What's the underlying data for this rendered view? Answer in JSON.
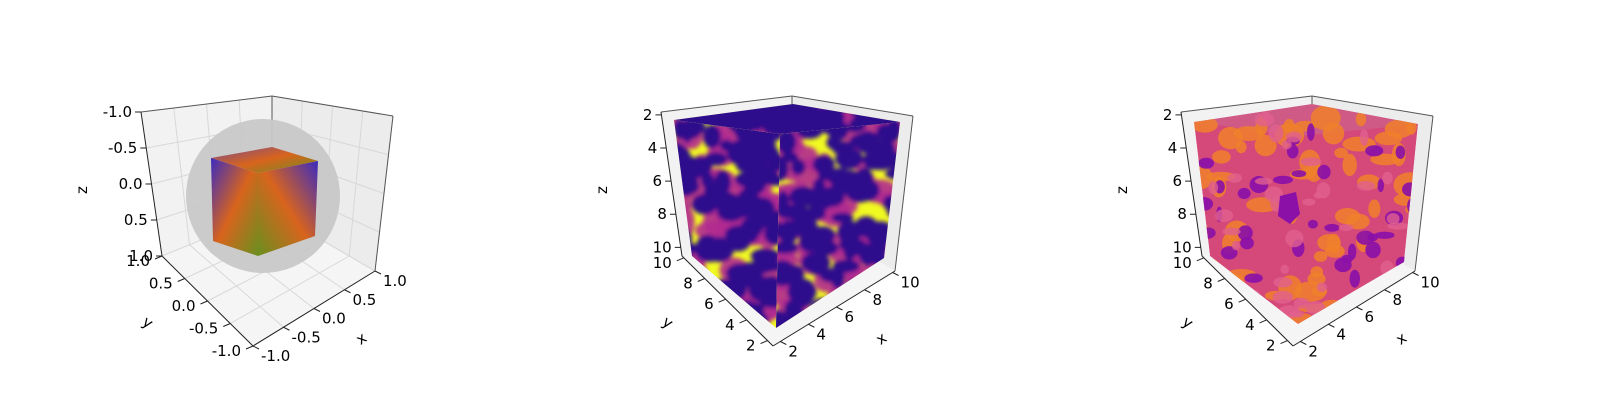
{
  "chart_data": [
    {
      "type": "3d-surface",
      "xlabel": "x",
      "ylabel": "y",
      "zlabel": "z",
      "xlim": [
        -1.0,
        1.0
      ],
      "ylim": [
        -1.0,
        1.0
      ],
      "zlim": [
        -1.0,
        1.0
      ],
      "x_ticks": [
        "-1.0",
        "-0.5",
        "0.0",
        "0.5",
        "1.0"
      ],
      "y_ticks": [
        "-1.0",
        "-0.5",
        "0.0",
        "0.5",
        "1.0"
      ],
      "z_ticks": [
        "-1.0",
        "-0.5",
        "0.0",
        "0.5",
        "1.0"
      ],
      "grid": true,
      "objects": [
        {
          "shape": "sphere",
          "radius": 1.0,
          "color": "#c8c8c8"
        },
        {
          "shape": "cube",
          "half_width": 0.6,
          "colors": [
            "#3b2bbf",
            "#6a8f1f",
            "#d8641d",
            "#7a4a8f"
          ]
        }
      ]
    },
    {
      "type": "3d-volume-slices",
      "xlabel": "x",
      "ylabel": "y",
      "zlabel": "z",
      "xlim": [
        0,
        10
      ],
      "ylim": [
        0,
        10
      ],
      "zlim": [
        0,
        10
      ],
      "x_ticks": [
        "2",
        "4",
        "6",
        "8",
        "10"
      ],
      "y_ticks": [
        "2",
        "4",
        "6",
        "8",
        "10"
      ],
      "z_ticks": [
        "2",
        "4",
        "6",
        "8",
        "10"
      ],
      "colormap": "plasma",
      "colors": {
        "low": "#2d0a8c",
        "mid": "#b12a90",
        "high": "#f0f921"
      },
      "grid": false
    },
    {
      "type": "3d-isosurface",
      "xlabel": "x",
      "ylabel": "y",
      "zlabel": "z",
      "xlim": [
        0,
        10
      ],
      "ylim": [
        0,
        10
      ],
      "zlim": [
        0,
        10
      ],
      "x_ticks": [
        "2",
        "4",
        "6",
        "8",
        "10"
      ],
      "y_ticks": [
        "2",
        "4",
        "6",
        "8",
        "10"
      ],
      "z_ticks": [
        "2",
        "4",
        "6",
        "8",
        "10"
      ],
      "colormap": "plasma",
      "colors": {
        "outer": "#d4487a",
        "inner": "#8a10a8",
        "edge": "#f0802a"
      },
      "grid": false
    }
  ]
}
